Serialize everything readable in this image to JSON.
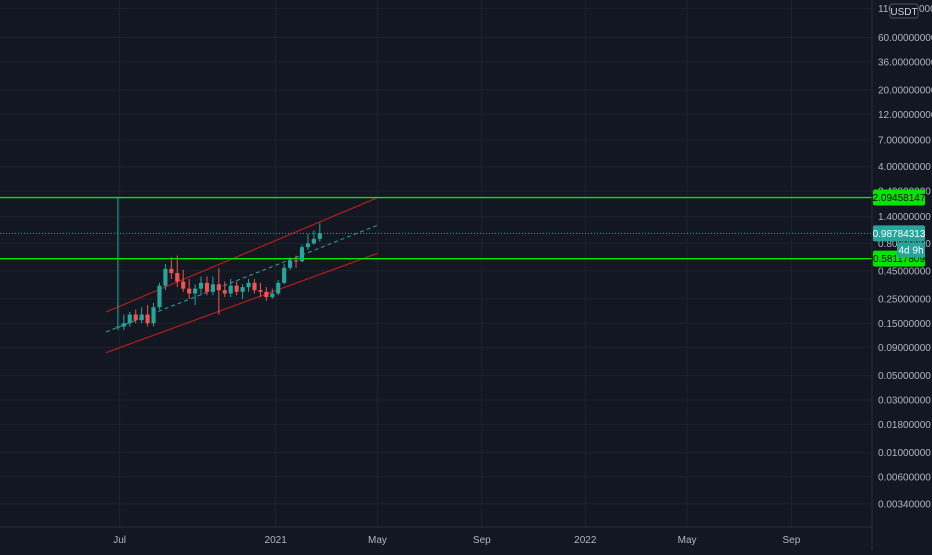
{
  "chart_data": {
    "type": "candlestick",
    "quote_currency": "USDT",
    "y_scale": "log",
    "ylim": [
      0.0025,
      120
    ],
    "y_ticks": [
      "110.00000000",
      "60.00000000",
      "36.00000000",
      "20.00000000",
      "12.00000000",
      "7.00000000",
      "4.00000000",
      "2.40000000",
      "1.40000000",
      "0.80000000",
      "0.45000000",
      "0.25000000",
      "0.15000000",
      "0.09000000",
      "0.05000000",
      "0.03000000",
      "0.01800000",
      "0.01000000",
      "0.00600000",
      "0.00340000"
    ],
    "x_ticks": [
      "Jul",
      "2021",
      "May",
      "Sep",
      "2022",
      "May",
      "Sep"
    ],
    "x_tick_dates": [
      "2020-07-01",
      "2021-01-01",
      "2021-05-01",
      "2021-09-01",
      "2022-01-01",
      "2022-05-01",
      "2022-09-01"
    ],
    "xlim": [
      "2020-02-11",
      "2022-12-05"
    ],
    "countdown": "4d 9h",
    "horizontal_levels": [
      {
        "label": "2.09458147",
        "value": 2.09458147,
        "color": "#00e600"
      },
      {
        "label": "0.58117809",
        "value": 0.58117809,
        "color": "#00e600"
      }
    ],
    "last_price": {
      "label": "0.98784313",
      "value": 0.98784313,
      "color": "#26a69a"
    },
    "channel": {
      "color": "#b71c1c",
      "mid_color": "#26a69a",
      "upper": [
        [
          "2020-06-15",
          0.19
        ],
        [
          "2021-05-01",
          2.09
        ]
      ],
      "lower": [
        [
          "2020-06-15",
          0.081
        ],
        [
          "2021-05-01",
          0.65
        ]
      ],
      "middle": [
        [
          "2020-06-15",
          0.125
        ],
        [
          "2021-05-01",
          1.17
        ]
      ]
    },
    "candles": [
      [
        "2020-06-29",
        0.14,
        2.09,
        0.13,
        0.14
      ],
      [
        "2020-07-06",
        0.14,
        0.18,
        0.13,
        0.15
      ],
      [
        "2020-07-13",
        0.15,
        0.19,
        0.14,
        0.18
      ],
      [
        "2020-07-20",
        0.18,
        0.2,
        0.15,
        0.16
      ],
      [
        "2020-07-27",
        0.16,
        0.21,
        0.15,
        0.18
      ],
      [
        "2020-08-03",
        0.18,
        0.22,
        0.14,
        0.15
      ],
      [
        "2020-08-10",
        0.15,
        0.23,
        0.14,
        0.21
      ],
      [
        "2020-08-17",
        0.21,
        0.35,
        0.2,
        0.33
      ],
      [
        "2020-08-24",
        0.33,
        0.52,
        0.3,
        0.47
      ],
      [
        "2020-08-31",
        0.47,
        0.6,
        0.38,
        0.43
      ],
      [
        "2020-09-07",
        0.43,
        0.62,
        0.32,
        0.36
      ],
      [
        "2020-09-14",
        0.36,
        0.46,
        0.29,
        0.31
      ],
      [
        "2020-09-21",
        0.31,
        0.38,
        0.25,
        0.28
      ],
      [
        "2020-09-28",
        0.28,
        0.34,
        0.22,
        0.31
      ],
      [
        "2020-10-05",
        0.31,
        0.4,
        0.27,
        0.35
      ],
      [
        "2020-10-12",
        0.35,
        0.4,
        0.27,
        0.29
      ],
      [
        "2020-10-19",
        0.29,
        0.4,
        0.27,
        0.34
      ],
      [
        "2020-10-26",
        0.34,
        0.48,
        0.18,
        0.3
      ],
      [
        "2020-11-02",
        0.3,
        0.36,
        0.26,
        0.28
      ],
      [
        "2020-11-09",
        0.28,
        0.38,
        0.26,
        0.33
      ],
      [
        "2020-11-16",
        0.33,
        0.36,
        0.27,
        0.29
      ],
      [
        "2020-11-23",
        0.29,
        0.34,
        0.25,
        0.32
      ],
      [
        "2020-11-30",
        0.32,
        0.38,
        0.29,
        0.35
      ],
      [
        "2020-12-07",
        0.35,
        0.38,
        0.28,
        0.3
      ],
      [
        "2020-12-14",
        0.3,
        0.35,
        0.26,
        0.29
      ],
      [
        "2020-12-21",
        0.29,
        0.32,
        0.24,
        0.26
      ],
      [
        "2020-12-28",
        0.26,
        0.31,
        0.25,
        0.28
      ],
      [
        "2021-01-04",
        0.28,
        0.37,
        0.27,
        0.35
      ],
      [
        "2021-01-11",
        0.35,
        0.52,
        0.34,
        0.48
      ],
      [
        "2021-01-18",
        0.48,
        0.6,
        0.46,
        0.56
      ],
      [
        "2021-01-25",
        0.56,
        0.62,
        0.48,
        0.55
      ],
      [
        "2021-02-01",
        0.55,
        0.78,
        0.54,
        0.74
      ],
      [
        "2021-02-08",
        0.74,
        0.98,
        0.7,
        0.8
      ],
      [
        "2021-02-15",
        0.8,
        1.05,
        0.78,
        0.88
      ],
      [
        "2021-02-22",
        0.88,
        1.22,
        0.83,
        0.99
      ]
    ]
  }
}
